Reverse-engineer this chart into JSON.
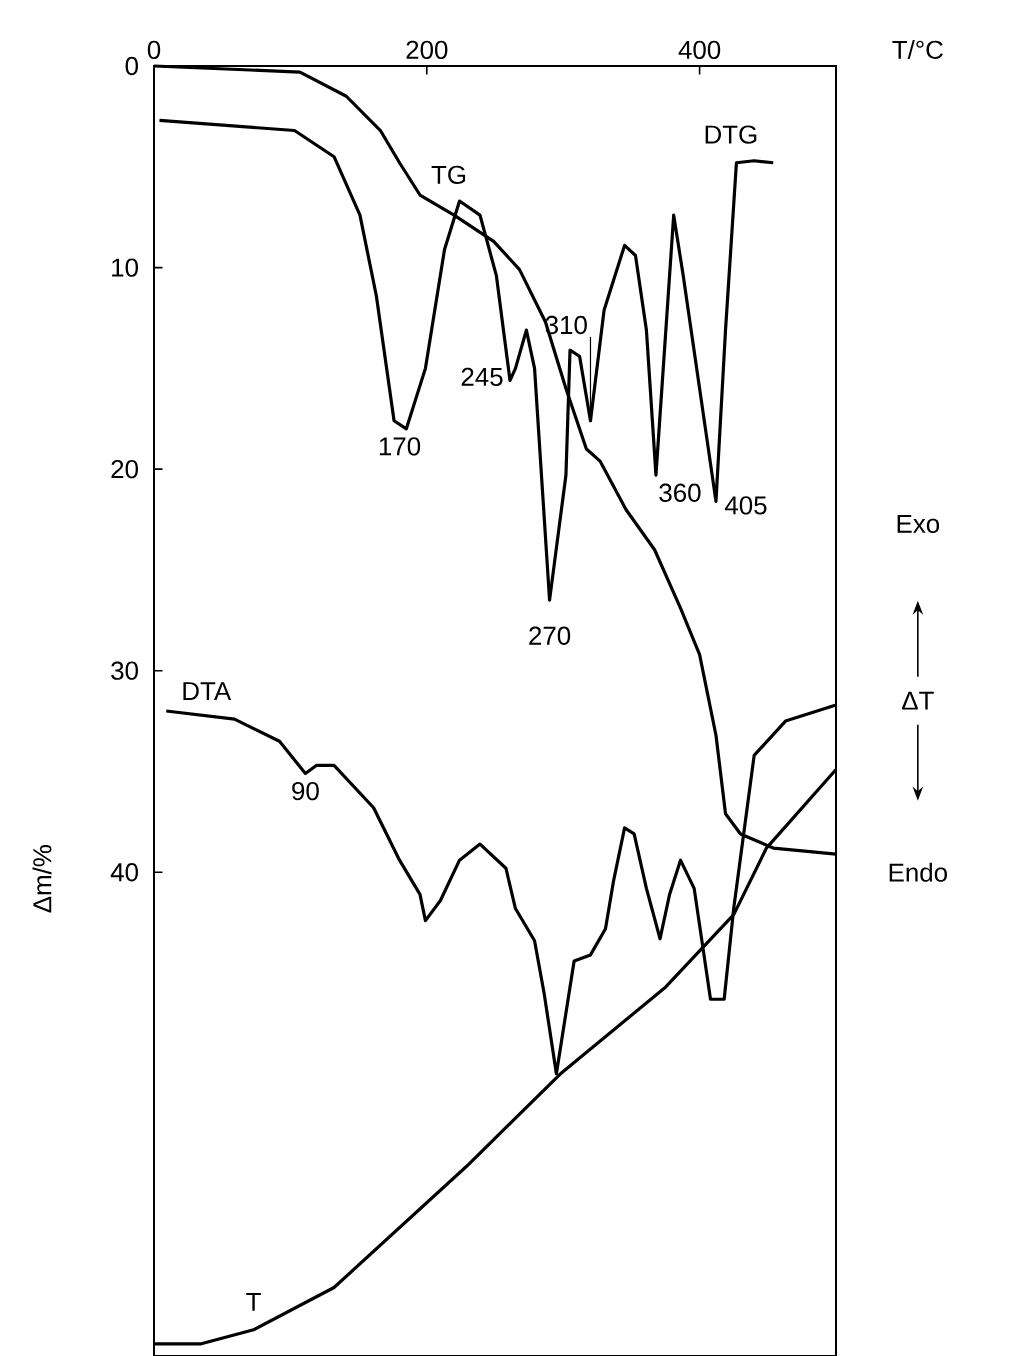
{
  "chart_data": {
    "type": "line",
    "xlabel": "T/°C",
    "ylabel": "Δm/%",
    "xlim": [
      0,
      500
    ],
    "ylim": [
      64,
      0
    ],
    "xticks": [
      0,
      200,
      400
    ],
    "yticks": [
      0,
      10,
      20,
      30,
      40
    ],
    "marker": "none",
    "line_style": "solid",
    "grid": false,
    "series": [
      {
        "name": "TG",
        "color": "#000000",
        "x": [
          0,
          107,
          141,
          166,
          180,
          195,
          220,
          249,
          268,
          287,
          302,
          317,
          327,
          346,
          367,
          386,
          400,
          412,
          419,
          430,
          454,
          500
        ],
        "values": [
          0,
          0.3,
          1.5,
          3.2,
          4.8,
          6.4,
          7.4,
          8.7,
          10.1,
          12.7,
          16.0,
          19.0,
          19.6,
          22.0,
          24.0,
          26.9,
          29.2,
          33.2,
          37.1,
          38.1,
          38.8,
          39.1
        ]
      },
      {
        "name": "DTG",
        "color": "#000000",
        "x": [
          4,
          103,
          132,
          151,
          163,
          176,
          185,
          199,
          213,
          224,
          239,
          251,
          261,
          265,
          273,
          279,
          290,
          302,
          305,
          312,
          320,
          330,
          345,
          353,
          361,
          368,
          381,
          388,
          412,
          419,
          427,
          440,
          454
        ],
        "values": [
          2.7,
          3.2,
          4.5,
          7.4,
          11.4,
          17.6,
          18.0,
          15.0,
          9.1,
          6.7,
          7.4,
          10.4,
          15.6,
          15.0,
          13.1,
          15.0,
          26.5,
          20.3,
          14.1,
          14.4,
          17.6,
          12.1,
          8.9,
          9.4,
          13.1,
          20.3,
          7.4,
          10.4,
          21.6,
          13.1,
          4.8,
          4.7,
          4.8
        ]
      },
      {
        "name": "DTA",
        "color": "#000000",
        "x": [
          9,
          59,
          92,
          111,
          119,
          132,
          161,
          180,
          195,
          199,
          210,
          224,
          239,
          258,
          265,
          279,
          286,
          295,
          308,
          320,
          331,
          337,
          345,
          352,
          361,
          371,
          378,
          386,
          396,
          408,
          418,
          425,
          440,
          463,
          500
        ],
        "values": [
          32.0,
          32.4,
          33.5,
          35.1,
          34.7,
          34.7,
          36.8,
          39.4,
          41.1,
          42.4,
          41.4,
          39.4,
          38.6,
          39.8,
          41.8,
          43.4,
          46.0,
          50.0,
          44.4,
          44.1,
          42.8,
          40.4,
          37.8,
          38.1,
          40.8,
          43.3,
          41.1,
          39.4,
          40.8,
          46.3,
          46.3,
          41.8,
          34.2,
          32.5,
          31.7
        ]
      },
      {
        "name": "T",
        "color": "#000000",
        "x": [
          0,
          34,
          73,
          132,
          229,
          298,
          375,
          425,
          449,
          500
        ],
        "values": [
          63.4,
          63.4,
          62.7,
          60.6,
          54.6,
          50.0,
          45.7,
          42.1,
          38.8,
          34.9
        ]
      }
    ],
    "annotations": [
      {
        "text": "170",
        "x": 180,
        "y": 18.0
      },
      {
        "text": "245",
        "x": 261,
        "y": 15.6
      },
      {
        "text": "270",
        "x": 290,
        "y": 26.5
      },
      {
        "text": "310",
        "x": 320,
        "y": 17.6
      },
      {
        "text": "360",
        "x": 368,
        "y": 20.3
      },
      {
        "text": "405",
        "x": 412,
        "y": 21.6
      },
      {
        "text": "90",
        "x": 111,
        "y": 35.1
      },
      "Exo",
      "ΔT",
      "Endo"
    ]
  }
}
